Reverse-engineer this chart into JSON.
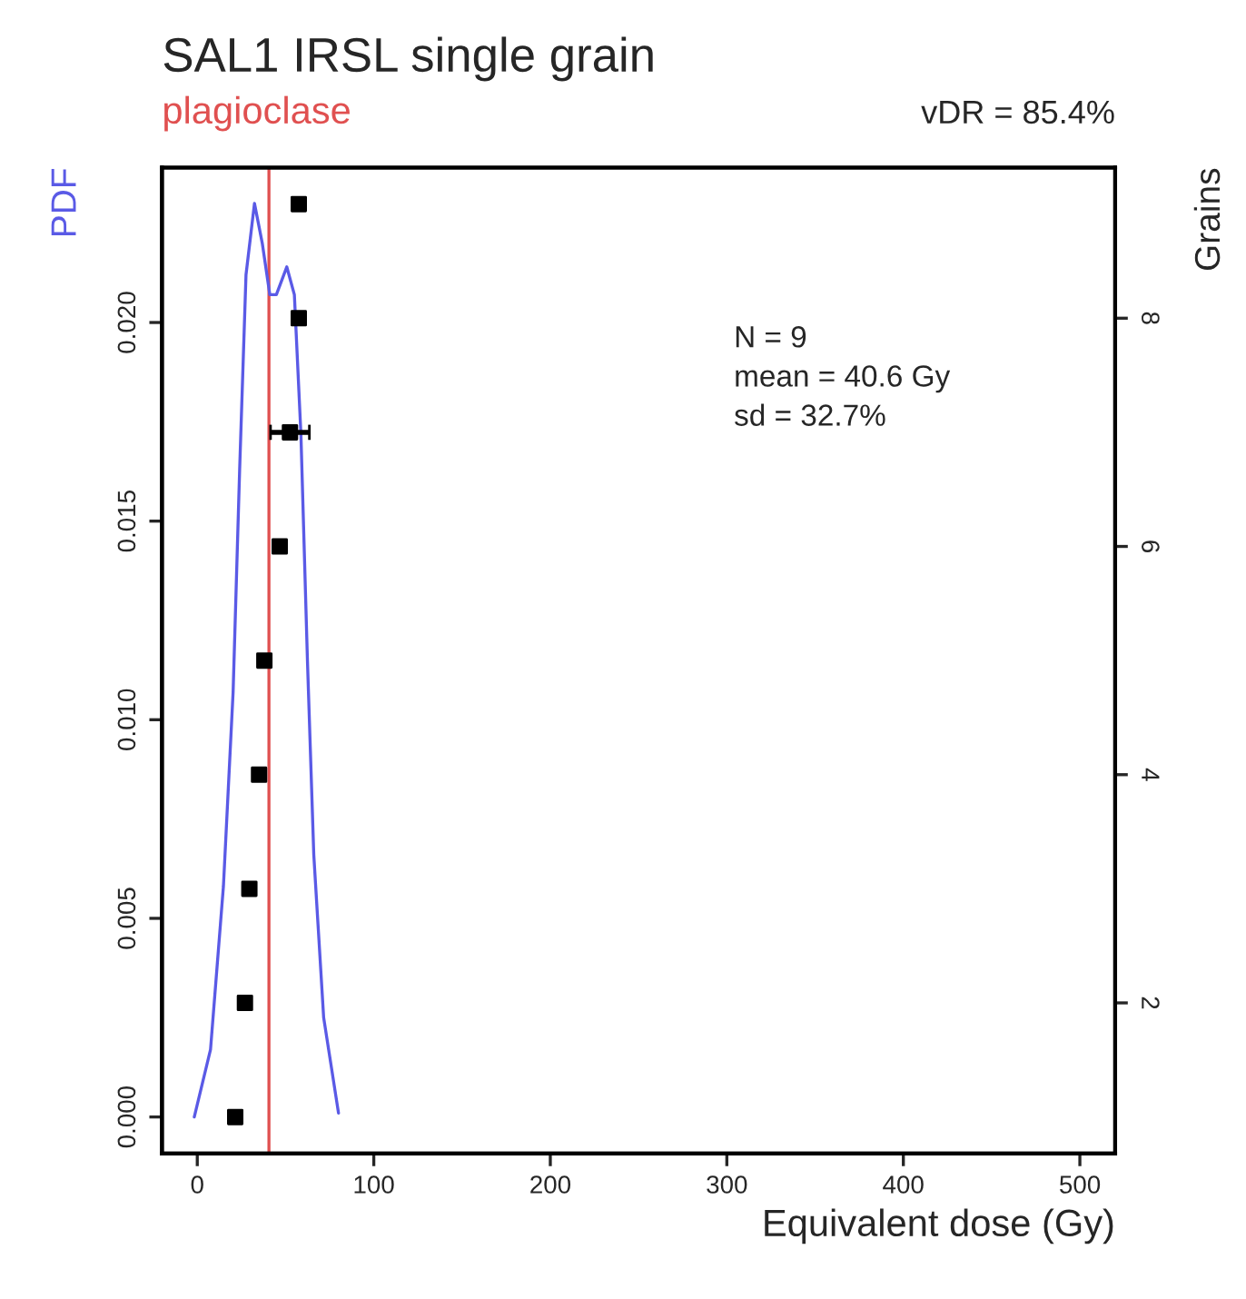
{
  "chart_data": {
    "type": "line",
    "title": "SAL1 IRSL single grain",
    "subtitle": "plagioclase",
    "xlabel": "Equivalent dose (Gy)",
    "ylabel": "PDF",
    "y2label": "Grains",
    "annotations": [
      "vDR = 85.4%",
      "N = 9",
      "mean = 40.6 Gy",
      "sd = 32.7%"
    ],
    "series": [
      {
        "color": "#5a5ae6",
        "x": [
          -1.7,
          7.5,
          14.8,
          20.3,
          24,
          27.6,
          32.4,
          36.8,
          41.1,
          44.8,
          50.7,
          55,
          58.7,
          62.4,
          66,
          71.6,
          80
        ],
        "values": [
          0.0,
          0.0017,
          0.0058,
          0.0107,
          0.0163,
          0.0212,
          0.023,
          0.022,
          0.0207,
          0.0207,
          0.0214,
          0.0207,
          0.0172,
          0.0115,
          0.0066,
          0.0025,
          0.0001
        ]
      },
      {
        "type": "scatter",
        "axis": "y2",
        "color": "#000000",
        "marker": "square",
        "x": [
          21.5,
          27,
          29.5,
          35,
          38,
          46.7,
          52.5,
          57.5,
          57.5
        ],
        "values": [
          1,
          2,
          3,
          4,
          5,
          6,
          7,
          8,
          9
        ],
        "xerrors": [
          null,
          null,
          null,
          null,
          null,
          null,
          11,
          3,
          3
        ]
      }
    ],
    "ref_lines": [
      {
        "axis": "x",
        "value": 40.6,
        "color": "#e05050"
      }
    ],
    "xlim": [
      -20,
      520
    ],
    "xticks": [
      0,
      100,
      200,
      300,
      400,
      500
    ],
    "ylim": [
      -0.00092,
      0.0239
    ],
    "yticks": [
      {
        "value": 0,
        "label": "0.000"
      },
      {
        "value": 0.005,
        "label": "0.005"
      },
      {
        "value": 0.01,
        "label": "0.010"
      },
      {
        "value": 0.015,
        "label": "0.015"
      },
      {
        "value": 0.02,
        "label": "0.020"
      }
    ],
    "y2lim": [
      0.68,
      9.32
    ],
    "y2ticks": [
      2,
      4,
      6,
      8
    ],
    "grid": false,
    "legend": false
  }
}
